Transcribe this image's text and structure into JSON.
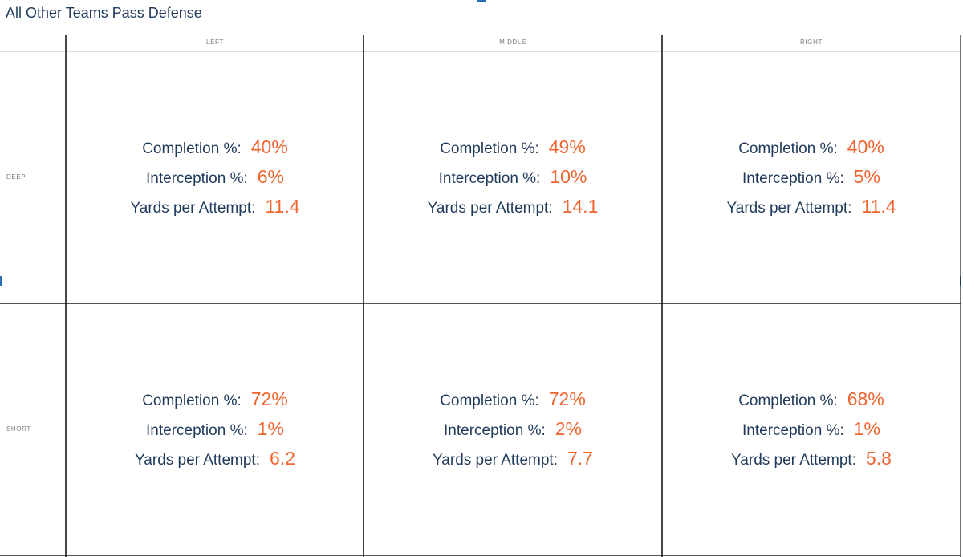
{
  "title": "All Other Teams Pass Defense",
  "colors": {
    "label": "#1f3a5a",
    "value": "#f0642e",
    "header": "#7a7a7a",
    "grid": "#1a1a1a"
  },
  "chart_data": {
    "type": "table",
    "title": "All Other Teams Pass Defense",
    "columns": [
      "LEFT",
      "MIDDLE",
      "RIGHT"
    ],
    "rows": [
      "DEEP",
      "SHORT"
    ],
    "metrics": [
      "Completion %:",
      "Interception %:",
      "Yards per Attempt:"
    ],
    "cells": [
      [
        {
          "completion": "40%",
          "interception": "6%",
          "ypa": "11.4"
        },
        {
          "completion": "49%",
          "interception": "10%",
          "ypa": "14.1"
        },
        {
          "completion": "40%",
          "interception": "5%",
          "ypa": "11.4"
        }
      ],
      [
        {
          "completion": "72%",
          "interception": "1%",
          "ypa": "6.2"
        },
        {
          "completion": "72%",
          "interception": "2%",
          "ypa": "7.7"
        },
        {
          "completion": "68%",
          "interception": "1%",
          "ypa": "5.8"
        }
      ]
    ]
  }
}
